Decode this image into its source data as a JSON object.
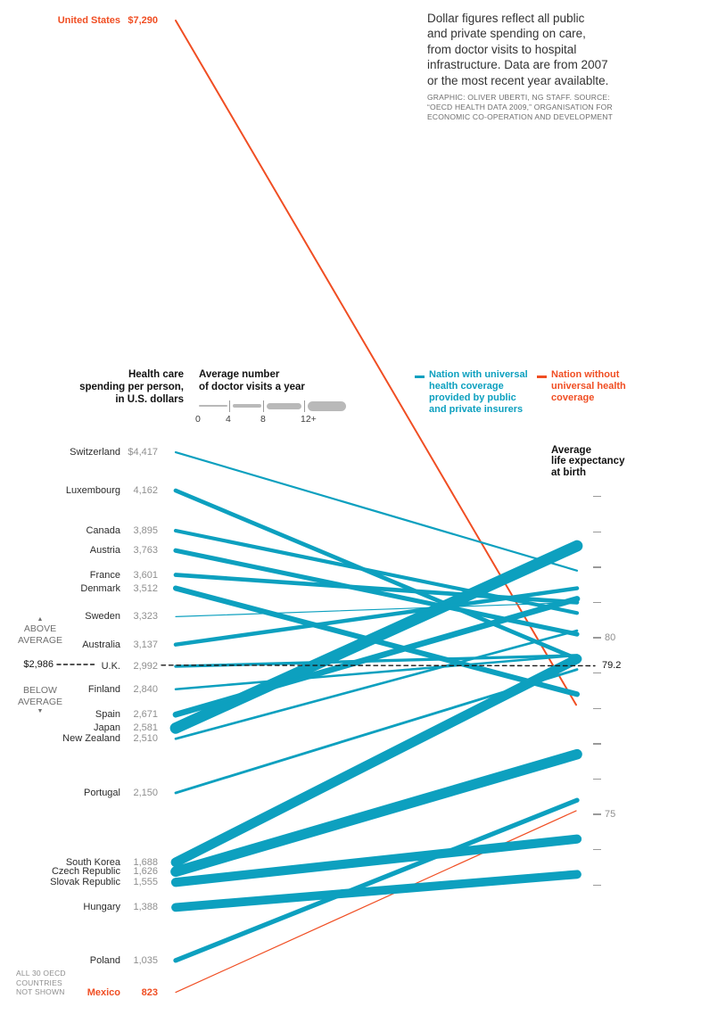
{
  "colors": {
    "teal": "#0da0bf",
    "orange": "#f04e23",
    "dash_black": "#1a1a1a",
    "tick_gray": "#9a9a9a",
    "legend_gray": "#b9b9b9"
  },
  "description_lines": [
    "Dollar figures reflect all public",
    "and private spending on care,",
    "from doctor visits to hospital",
    "infrastructure. Data are from 2007",
    "or the most recent year availablte."
  ],
  "credit_lines": [
    "GRAPHIC: OLIVER UBERTI, NG STAFF. SOURCE:",
    "“OECD HEALTH DATA 2009,” ORGANISATION FOR",
    "ECONOMIC CO-OPERATION AND DEVELOPMENT"
  ],
  "left_header_lines": [
    "Health care",
    "spending per person,",
    "in U.S. dollars"
  ],
  "visits_legend": {
    "title_lines": [
      "Average number",
      "of doctor visits a year"
    ],
    "tick_labels": [
      "0",
      "4",
      "8",
      "12+"
    ]
  },
  "coverage_legend": {
    "universal_lines": [
      "Nation with universal",
      "health coverage",
      "provided by public",
      "and private insurers"
    ],
    "non_universal_lines": [
      "Nation without",
      "universal health",
      "coverage"
    ]
  },
  "right_axis_header_lines": [
    "Average",
    "life expectancy",
    "at birth"
  ],
  "above_marker": "▲",
  "above_lines": [
    "ABOVE",
    "AVERAGE"
  ],
  "below_lines": [
    "BELOW",
    "AVERAGE"
  ],
  "below_marker": "▼",
  "footnote_lines": [
    "ALL 30 OECD",
    "COUNTRIES",
    "NOT SHOWN"
  ],
  "chart_data": {
    "type": "line",
    "subtype": "slopegraph",
    "title": "Health care spending per person vs. average life expectancy at birth",
    "left_axis": {
      "label": "Health care spending per person, in U.S. dollars",
      "min_shown": 823,
      "max_shown": 7290
    },
    "right_axis": {
      "label": "Average life expectancy at birth",
      "unit": "years",
      "ticks": [
        84,
        83,
        82,
        81,
        80,
        79,
        78,
        77,
        76,
        75,
        74,
        73
      ],
      "labeled_ticks": [
        80,
        75
      ]
    },
    "thickness_encoding": {
      "label": "Average number of doctor visits a year",
      "scale_stops": [
        0,
        4,
        8,
        12
      ]
    },
    "average": {
      "spending": 2986,
      "spending_label": "$2,986",
      "life_expectancy": 79.2,
      "life_expectancy_label": "79.2"
    },
    "countries": [
      {
        "name": "United States",
        "spending": 7290,
        "spending_label": "$7,290",
        "visits": 3.8,
        "life_expectancy": 78.1,
        "universal_coverage": false
      },
      {
        "name": "Switzerland",
        "spending": 4417,
        "spending_label": "$4,417",
        "visits": 4.0,
        "life_expectancy": 81.9,
        "universal_coverage": true
      },
      {
        "name": "Luxembourg",
        "spending": 4162,
        "spending_label": "4,162",
        "visits": 6.3,
        "life_expectancy": 79.4,
        "universal_coverage": true
      },
      {
        "name": "Canada",
        "spending": 3895,
        "spending_label": "3,895",
        "visits": 5.8,
        "life_expectancy": 80.7,
        "universal_coverage": true
      },
      {
        "name": "Austria",
        "spending": 3763,
        "spending_label": "3,763",
        "visits": 6.7,
        "life_expectancy": 80.1,
        "universal_coverage": true
      },
      {
        "name": "France",
        "spending": 3601,
        "spending_label": "3,601",
        "visits": 6.3,
        "life_expectancy": 81.0,
        "universal_coverage": true
      },
      {
        "name": "Denmark",
        "spending": 3512,
        "spending_label": "3,512",
        "visits": 7.5,
        "life_expectancy": 78.4,
        "universal_coverage": true
      },
      {
        "name": "Sweden",
        "spending": 3323,
        "spending_label": "3,323",
        "visits": 2.8,
        "life_expectancy": 81.0,
        "universal_coverage": true
      },
      {
        "name": "Australia",
        "spending": 3137,
        "spending_label": "3,137",
        "visits": 6.1,
        "life_expectancy": 81.4,
        "universal_coverage": true
      },
      {
        "name": "U.K.",
        "spending": 2992,
        "spending_label": "2,992",
        "visits": 5.0,
        "life_expectancy": 79.5,
        "universal_coverage": true
      },
      {
        "name": "Finland",
        "spending": 2840,
        "spending_label": "2,840",
        "visits": 4.3,
        "life_expectancy": 79.5,
        "universal_coverage": true
      },
      {
        "name": "Spain",
        "spending": 2671,
        "spending_label": "2,671",
        "visits": 8.1,
        "life_expectancy": 81.1,
        "universal_coverage": true
      },
      {
        "name": "Japan",
        "spending": 2581,
        "spending_label": "2,581",
        "visits": 13.6,
        "life_expectancy": 82.6,
        "universal_coverage": true
      },
      {
        "name": "New Zealand",
        "spending": 2510,
        "spending_label": "2,510",
        "visits": 4.4,
        "life_expectancy": 80.2,
        "universal_coverage": true
      },
      {
        "name": "Portugal",
        "spending": 2150,
        "spending_label": "2,150",
        "visits": 4.6,
        "life_expectancy": 79.1,
        "universal_coverage": true
      },
      {
        "name": "South Korea",
        "spending": 1688,
        "spending_label": "1,688",
        "visits": 11.8,
        "life_expectancy": 79.4,
        "universal_coverage": true
      },
      {
        "name": "Czech Republic",
        "spending": 1626,
        "spending_label": "1,626",
        "visits": 12.6,
        "life_expectancy": 76.7,
        "universal_coverage": true
      },
      {
        "name": "Slovak Republic",
        "spending": 1555,
        "spending_label": "1,555",
        "visits": 11.3,
        "life_expectancy": 74.3,
        "universal_coverage": true
      },
      {
        "name": "Hungary",
        "spending": 1388,
        "spending_label": "1,388",
        "visits": 10.9,
        "life_expectancy": 73.3,
        "universal_coverage": true
      },
      {
        "name": "Poland",
        "spending": 1035,
        "spending_label": "1,035",
        "visits": 6.8,
        "life_expectancy": 75.4,
        "universal_coverage": true
      },
      {
        "name": "Mexico",
        "spending": 823,
        "spending_label": "823",
        "visits": 2.5,
        "life_expectancy": 75.1,
        "universal_coverage": false
      }
    ]
  }
}
